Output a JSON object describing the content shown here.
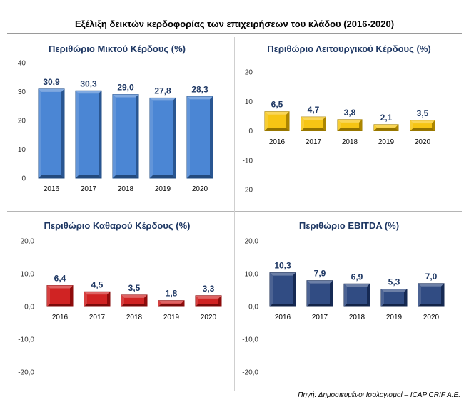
{
  "header": {
    "title": "Εξέλιξη δεικτών κερδοφορίας των επιχειρήσεων του κλάδου (2016-2020)"
  },
  "footer": {
    "source": "Πηγή: Δημοσιευμένοι Ισολογισμοί – ICAP CRIF A.E."
  },
  "colors": {
    "blue": "#3b7bd0",
    "gold": "#f5c000",
    "red": "#cc1010",
    "navy": "#1f3c78"
  },
  "chart_data": [
    {
      "type": "bar",
      "title": "Περιθώριο Μικτού Κέρδους (%)",
      "categories": [
        "2016",
        "2017",
        "2018",
        "2019",
        "2020"
      ],
      "values": [
        30.9,
        30.3,
        29.0,
        27.8,
        28.3
      ],
      "value_labels": [
        "30,9",
        "30,3",
        "29,0",
        "27,8",
        "28,3"
      ],
      "ylim": [
        0,
        40
      ],
      "yticks": [
        "0",
        "10",
        "20",
        "30",
        "40"
      ],
      "bar_color": "#3b7bd0",
      "grid": false
    },
    {
      "type": "bar",
      "title": "Περιθώριο Λειτουργικού Κέρδους (%)",
      "categories": [
        "2016",
        "2017",
        "2018",
        "2019",
        "2020"
      ],
      "values": [
        6.5,
        4.7,
        3.8,
        2.1,
        3.5
      ],
      "value_labels": [
        "6,5",
        "4,7",
        "3,8",
        "2,1",
        "3,5"
      ],
      "ylim": [
        -20,
        20
      ],
      "yticks": [
        "-20",
        "-10",
        "0",
        "10",
        "20"
      ],
      "bar_color": "#f5c000",
      "grid": false
    },
    {
      "type": "bar",
      "title": "Περιθώριο Καθαρού Κέρδους (%)",
      "categories": [
        "2016",
        "2017",
        "2018",
        "2019",
        "2020"
      ],
      "values": [
        6.4,
        4.5,
        3.5,
        1.8,
        3.3
      ],
      "value_labels": [
        "6,4",
        "4,5",
        "3,5",
        "1,8",
        "3,3"
      ],
      "ylim": [
        -20,
        20
      ],
      "yticks": [
        "-20,0",
        "-10,0",
        "0,0",
        "10,0",
        "20,0"
      ],
      "bar_color": "#cc1010",
      "grid": false
    },
    {
      "type": "bar",
      "title": "Περιθώριο EBITDA (%)",
      "categories": [
        "2016",
        "2017",
        "2018",
        "2019",
        "2020"
      ],
      "values": [
        10.3,
        7.9,
        6.9,
        5.3,
        7.0
      ],
      "value_labels": [
        "10,3",
        "7,9",
        "6,9",
        "5,3",
        "7,0"
      ],
      "ylim": [
        -20,
        20
      ],
      "yticks": [
        "-20,0",
        "-10,0",
        "0,0",
        "10,0",
        "20,0"
      ],
      "bar_color": "#1f3c78",
      "grid": false
    }
  ]
}
